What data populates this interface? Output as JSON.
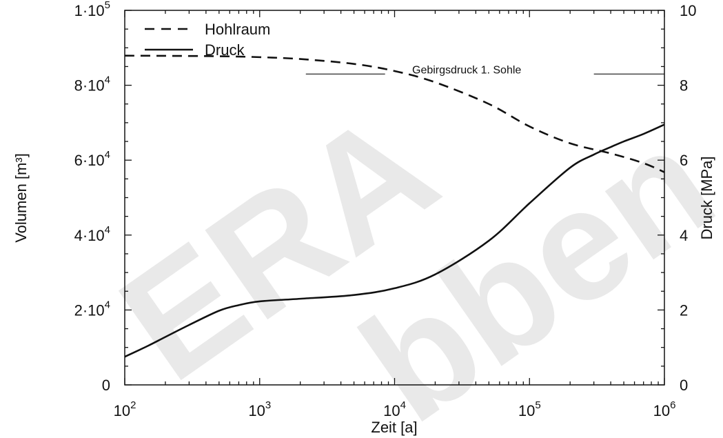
{
  "watermark": {
    "left": "ERA",
    "right": "bben"
  },
  "chart_data": {
    "type": "line",
    "title": "",
    "xlabel": "Zeit [a]",
    "ylabel_left": "Volumen [m³]",
    "ylabel_right": "Druck [MPa]",
    "xscale": "log",
    "xlim": [
      100,
      1000000
    ],
    "ylim_left": [
      0,
      100000
    ],
    "ylim_right": [
      0,
      10
    ],
    "x_ticks": [
      {
        "value": 100,
        "base": "10",
        "exp": "2"
      },
      {
        "value": 1000,
        "base": "10",
        "exp": "3"
      },
      {
        "value": 10000,
        "base": "10",
        "exp": "4"
      },
      {
        "value": 100000,
        "base": "10",
        "exp": "5"
      },
      {
        "value": 1000000,
        "base": "10",
        "exp": "6"
      }
    ],
    "y_left_ticks": [
      {
        "value": 0,
        "base": "0",
        "exp": ""
      },
      {
        "value": 20000,
        "base": "2·10",
        "exp": "4"
      },
      {
        "value": 40000,
        "base": "4·10",
        "exp": "4"
      },
      {
        "value": 60000,
        "base": "6·10",
        "exp": "4"
      },
      {
        "value": 80000,
        "base": "8·10",
        "exp": "4"
      },
      {
        "value": 100000,
        "base": "1·10",
        "exp": "5"
      }
    ],
    "y_right_ticks": [
      {
        "value": 0,
        "label": "0"
      },
      {
        "value": 2,
        "label": "2"
      },
      {
        "value": 4,
        "label": "4"
      },
      {
        "value": 6,
        "label": "6"
      },
      {
        "value": 8,
        "label": "8"
      },
      {
        "value": 10,
        "label": "10"
      }
    ],
    "legend": {
      "position": "top-left",
      "entries": [
        {
          "label": "Hohlraum",
          "style": "dashed"
        },
        {
          "label": "Druck",
          "style": "solid"
        }
      ]
    },
    "series": [
      {
        "name": "Hohlraum",
        "axis": "left",
        "style": "dashed",
        "x": [
          100,
          200,
          500,
          1000,
          2000,
          5000,
          10000,
          20000,
          50000,
          100000,
          200000,
          400000,
          700000,
          1000000
        ],
        "y": [
          87900,
          87850,
          87750,
          87500,
          87000,
          85700,
          83800,
          80800,
          75000,
          69000,
          64500,
          61800,
          59200,
          56800
        ]
      },
      {
        "name": "Druck",
        "axis": "right",
        "style": "solid",
        "x": [
          100,
          150,
          200,
          300,
          500,
          700,
          1000,
          2000,
          5000,
          10000,
          20000,
          50000,
          100000,
          200000,
          300000,
          400000,
          500000,
          700000,
          1000000
        ],
        "y": [
          0.75,
          1.05,
          1.28,
          1.6,
          1.98,
          2.13,
          2.23,
          2.3,
          2.4,
          2.58,
          2.95,
          3.85,
          4.85,
          5.8,
          6.15,
          6.35,
          6.5,
          6.7,
          6.95
        ]
      }
    ],
    "annotations": [
      {
        "text": "Gebirgsdruck 1. Sohle",
        "axis": "right",
        "y": 8.3
      }
    ]
  }
}
